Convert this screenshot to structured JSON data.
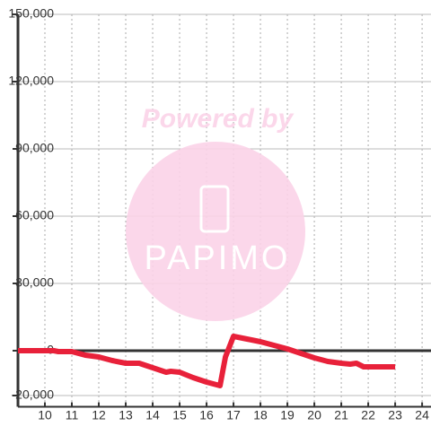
{
  "chart_data": {
    "type": "line",
    "watermark": {
      "top": "Powered by",
      "logo": "PAPIMO"
    },
    "x": [
      9,
      10.33,
      10.5,
      11,
      11.5,
      12,
      12.5,
      13,
      13.5,
      14,
      14.5,
      14.67,
      15,
      15.5,
      16,
      16.5,
      16.7,
      17,
      17.5,
      18,
      18.5,
      19,
      19.5,
      20,
      20.5,
      21,
      21.33,
      21.56,
      21.83,
      22.33,
      23
    ],
    "series": [
      {
        "color": "#e8213a",
        "values": [
          0,
          0,
          -400,
          -400,
          -2000,
          -2800,
          -4400,
          -5600,
          -5600,
          -7600,
          -9600,
          -9200,
          -9600,
          -12000,
          -14000,
          -15600,
          -2800,
          6400,
          5200,
          4000,
          2400,
          800,
          -1200,
          -3200,
          -4800,
          -5600,
          -6000,
          -5600,
          -7200,
          -7200,
          -7200
        ]
      }
    ],
    "xlim": [
      9,
      24.33
    ],
    "xticks": [
      10,
      11,
      12,
      13,
      14,
      15,
      16,
      17,
      18,
      19,
      20,
      21,
      22,
      23,
      24
    ],
    "ylim": [
      -25000,
      150000
    ],
    "yticks": [
      {
        "value": -20000,
        "label": "-20,000"
      },
      0,
      {
        "value": 30000,
        "label": "30,000"
      },
      {
        "value": 60000,
        "label": "60,000"
      },
      {
        "value": 90000,
        "label": "90,000"
      },
      {
        "value": 120000,
        "label": "120,000"
      },
      {
        "value": 150000,
        "label": "150,000"
      }
    ],
    "grid": true
  }
}
